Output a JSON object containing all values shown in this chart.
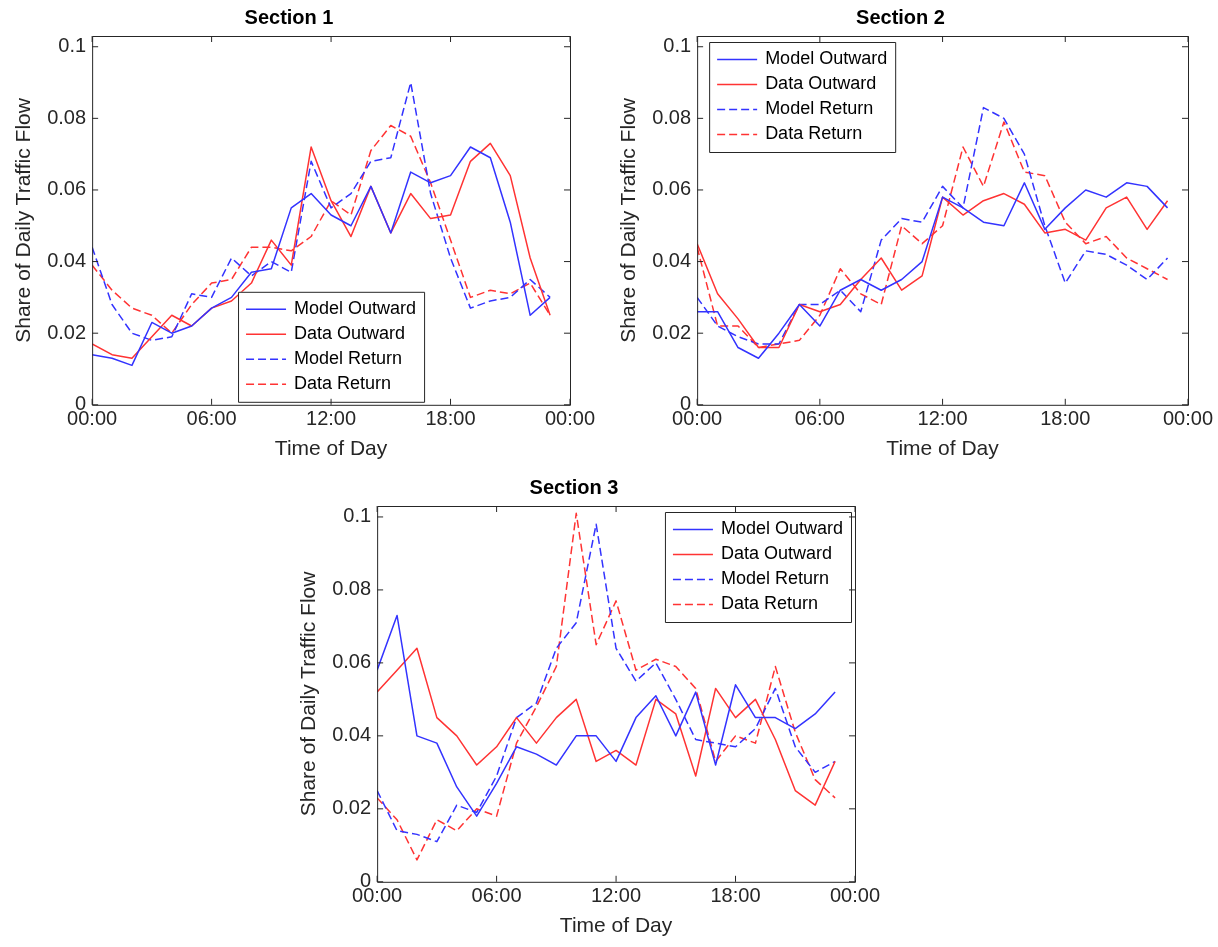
{
  "chart_data": [
    {
      "type": "line",
      "title": "Section 1",
      "xlabel": "Time of Day",
      "ylabel": "Share of Daily Traffic Flow",
      "legend": "bottom",
      "x": [
        0,
        1,
        2,
        3,
        4,
        5,
        6,
        7,
        8,
        9,
        10,
        11,
        12,
        13,
        14,
        15,
        16,
        17,
        18,
        19,
        20,
        21,
        22,
        23
      ],
      "xlim": [
        0,
        24
      ],
      "xticks": [
        {
          "value": 0,
          "label": "00:00"
        },
        {
          "value": 6,
          "label": "06:00"
        },
        {
          "value": 12,
          "label": "12:00"
        },
        {
          "value": 18,
          "label": "18:00"
        },
        {
          "value": 24,
          "label": "00:00"
        }
      ],
      "ylim": [
        0,
        0.103
      ],
      "yticks": [
        0,
        0.02,
        0.04,
        0.06,
        0.08,
        0.1
      ],
      "series": [
        {
          "name": "Model Outward",
          "color": "#3333ff",
          "line_style": "solid",
          "values": [
            0.014,
            0.013,
            0.011,
            0.023,
            0.02,
            0.022,
            0.027,
            0.03,
            0.037,
            0.038,
            0.055,
            0.059,
            0.053,
            0.05,
            0.061,
            0.048,
            0.065,
            0.062,
            0.064,
            0.072,
            0.069,
            0.051,
            0.025,
            0.03
          ]
        },
        {
          "name": "Data Outward",
          "color": "#ff3333",
          "line_style": "solid",
          "values": [
            0.017,
            0.014,
            0.013,
            0.019,
            0.025,
            0.022,
            0.027,
            0.029,
            0.034,
            0.046,
            0.039,
            0.072,
            0.057,
            0.047,
            0.061,
            0.048,
            0.059,
            0.052,
            0.053,
            0.068,
            0.073,
            0.064,
            0.041,
            0.025
          ]
        },
        {
          "name": "Model Return",
          "color": "#3333ff",
          "line_style": "dashed",
          "values": [
            0.044,
            0.028,
            0.02,
            0.018,
            0.019,
            0.031,
            0.03,
            0.041,
            0.036,
            0.04,
            0.037,
            0.068,
            0.055,
            0.059,
            0.068,
            0.069,
            0.09,
            0.059,
            0.041,
            0.027,
            0.029,
            0.03,
            0.035,
            0.03
          ]
        },
        {
          "name": "Data Return",
          "color": "#ff3333",
          "line_style": "dashed",
          "values": [
            0.039,
            0.032,
            0.027,
            0.025,
            0.02,
            0.028,
            0.034,
            0.035,
            0.044,
            0.044,
            0.043,
            0.047,
            0.057,
            0.053,
            0.071,
            0.078,
            0.075,
            0.062,
            0.046,
            0.03,
            0.032,
            0.031,
            0.034,
            0.025
          ]
        }
      ]
    },
    {
      "type": "line",
      "title": "Section 2",
      "xlabel": "Time of Day",
      "ylabel": "Share of Daily Traffic Flow",
      "legend": "top left",
      "x": [
        0,
        1,
        2,
        3,
        4,
        5,
        6,
        7,
        8,
        9,
        10,
        11,
        12,
        13,
        14,
        15,
        16,
        17,
        18,
        19,
        20,
        21,
        22,
        23
      ],
      "xlim": [
        0,
        24
      ],
      "xticks": [
        {
          "value": 0,
          "label": "00:00"
        },
        {
          "value": 6,
          "label": "06:00"
        },
        {
          "value": 12,
          "label": "12:00"
        },
        {
          "value": 18,
          "label": "18:00"
        },
        {
          "value": 24,
          "label": "00:00"
        }
      ],
      "ylim": [
        0,
        0.103
      ],
      "yticks": [
        0,
        0.02,
        0.04,
        0.06,
        0.08,
        0.1
      ],
      "series": [
        {
          "name": "Model Outward",
          "color": "#3333ff",
          "line_style": "solid",
          "values": [
            0.026,
            0.026,
            0.016,
            0.013,
            0.02,
            0.028,
            0.022,
            0.032,
            0.035,
            0.032,
            0.035,
            0.04,
            0.058,
            0.055,
            0.051,
            0.05,
            0.062,
            0.049,
            0.055,
            0.06,
            0.058,
            0.062,
            0.061,
            0.055
          ]
        },
        {
          "name": "Data Outward",
          "color": "#ff3333",
          "line_style": "solid",
          "values": [
            0.045,
            0.031,
            0.024,
            0.016,
            0.016,
            0.028,
            0.026,
            0.028,
            0.035,
            0.041,
            0.032,
            0.036,
            0.058,
            0.053,
            0.057,
            0.059,
            0.056,
            0.048,
            0.049,
            0.046,
            0.055,
            0.058,
            0.049,
            0.057
          ]
        },
        {
          "name": "Model Return",
          "color": "#3333ff",
          "line_style": "dashed",
          "values": [
            0.03,
            0.022,
            0.019,
            0.017,
            0.017,
            0.028,
            0.028,
            0.032,
            0.026,
            0.046,
            0.052,
            0.051,
            0.061,
            0.055,
            0.083,
            0.08,
            0.07,
            0.05,
            0.034,
            0.043,
            0.042,
            0.039,
            0.035,
            0.041
          ]
        },
        {
          "name": "Data Return",
          "color": "#ff3333",
          "line_style": "dashed",
          "values": [
            0.044,
            0.022,
            0.022,
            0.016,
            0.017,
            0.018,
            0.025,
            0.038,
            0.031,
            0.028,
            0.05,
            0.045,
            0.05,
            0.072,
            0.061,
            0.079,
            0.065,
            0.064,
            0.051,
            0.045,
            0.047,
            0.041,
            0.038,
            0.035
          ]
        }
      ]
    },
    {
      "type": "line",
      "title": "Section 3",
      "xlabel": "Time of Day",
      "ylabel": "Share of Daily Traffic Flow",
      "legend": "top right",
      "x": [
        0,
        1,
        2,
        3,
        4,
        5,
        6,
        7,
        8,
        9,
        10,
        11,
        12,
        13,
        14,
        15,
        16,
        17,
        18,
        19,
        20,
        21,
        22,
        23
      ],
      "xlim": [
        0,
        24
      ],
      "xticks": [
        {
          "value": 0,
          "label": "00:00"
        },
        {
          "value": 6,
          "label": "06:00"
        },
        {
          "value": 12,
          "label": "12:00"
        },
        {
          "value": 18,
          "label": "18:00"
        },
        {
          "value": 24,
          "label": "00:00"
        }
      ],
      "ylim": [
        0,
        0.103
      ],
      "yticks": [
        0,
        0.02,
        0.04,
        0.06,
        0.08,
        0.1
      ],
      "series": [
        {
          "name": "Model Outward",
          "color": "#3333ff",
          "line_style": "solid",
          "values": [
            0.058,
            0.073,
            0.04,
            0.038,
            0.026,
            0.018,
            0.027,
            0.037,
            0.035,
            0.032,
            0.04,
            0.04,
            0.033,
            0.045,
            0.051,
            0.04,
            0.052,
            0.032,
            0.054,
            0.045,
            0.045,
            0.042,
            0.046,
            0.052
          ]
        },
        {
          "name": "Data Outward",
          "color": "#ff3333",
          "line_style": "solid",
          "values": [
            0.052,
            0.058,
            0.064,
            0.045,
            0.04,
            0.032,
            0.037,
            0.045,
            0.038,
            0.045,
            0.05,
            0.033,
            0.036,
            0.032,
            0.05,
            0.046,
            0.029,
            0.053,
            0.045,
            0.05,
            0.039,
            0.025,
            0.021,
            0.033
          ]
        },
        {
          "name": "Model Return",
          "color": "#3333ff",
          "line_style": "dashed",
          "values": [
            0.025,
            0.014,
            0.013,
            0.011,
            0.021,
            0.019,
            0.029,
            0.045,
            0.049,
            0.064,
            0.071,
            0.098,
            0.064,
            0.055,
            0.06,
            0.05,
            0.039,
            0.038,
            0.037,
            0.042,
            0.053,
            0.037,
            0.03,
            0.033
          ]
        },
        {
          "name": "Data Return",
          "color": "#ff3333",
          "line_style": "dashed",
          "values": [
            0.023,
            0.017,
            0.006,
            0.017,
            0.014,
            0.02,
            0.018,
            0.038,
            0.048,
            0.059,
            0.101,
            0.065,
            0.077,
            0.058,
            0.061,
            0.059,
            0.053,
            0.033,
            0.04,
            0.038,
            0.059,
            0.041,
            0.028,
            0.023
          ]
        }
      ]
    }
  ]
}
